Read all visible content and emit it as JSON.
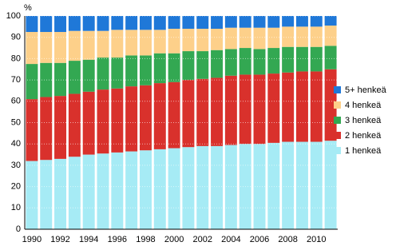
{
  "chart_data": {
    "type": "stacked_bar",
    "y_label": "%",
    "categories": [
      "1990",
      null,
      "1992",
      null,
      "1994",
      null,
      "1996",
      null,
      "1998",
      null,
      "2000",
      null,
      "2002",
      null,
      "2004",
      null,
      "2006",
      null,
      "2008",
      null,
      "2010",
      null
    ],
    "series": [
      {
        "name": "1 henkeä",
        "color": "#a6ebf5",
        "values": [
          32,
          32.5,
          33,
          34,
          35,
          35.5,
          36,
          36.5,
          37,
          37.5,
          38,
          38.5,
          39,
          39,
          39.5,
          40,
          40,
          40.5,
          41,
          41,
          41,
          41.5
        ]
      },
      {
        "name": "2 henkeä",
        "color": "#d9312c",
        "values": [
          29,
          29.5,
          29.5,
          29.5,
          29.5,
          30,
          30,
          30.5,
          30.5,
          31,
          31,
          31.5,
          31.5,
          32,
          32.5,
          32.5,
          32.5,
          32.5,
          32.5,
          33,
          33,
          33.5
        ]
      },
      {
        "name": "3 henkeä",
        "color": "#33a852",
        "values": [
          16.5,
          16,
          15.5,
          15.5,
          15,
          15,
          14.5,
          14.5,
          14,
          14,
          13.5,
          13.5,
          13,
          13,
          12.5,
          12.5,
          12,
          12,
          12,
          11.5,
          11.5,
          11
        ]
      },
      {
        "name": "4 henkeä",
        "color": "#fdd08a",
        "values": [
          15,
          14.5,
          14.5,
          14,
          13.5,
          12.5,
          13,
          12,
          12,
          11,
          11.5,
          10.5,
          10.5,
          10,
          10,
          9.5,
          10,
          9.5,
          9.5,
          9.5,
          9.5,
          9.5
        ]
      },
      {
        "name": "5+ henkeä",
        "color": "#1f78d8",
        "values": [
          7.5,
          7.5,
          7.5,
          7,
          7,
          7,
          6.5,
          6.5,
          6.5,
          6.5,
          6,
          6,
          6,
          6,
          5.5,
          5.5,
          5.5,
          5.5,
          5,
          5,
          5,
          4.5
        ]
      }
    ],
    "ylim": [
      0,
      100
    ],
    "yticks": [
      0,
      10,
      20,
      30,
      40,
      50,
      60,
      70,
      80,
      90,
      100
    ],
    "grid": true,
    "legend": "right"
  }
}
